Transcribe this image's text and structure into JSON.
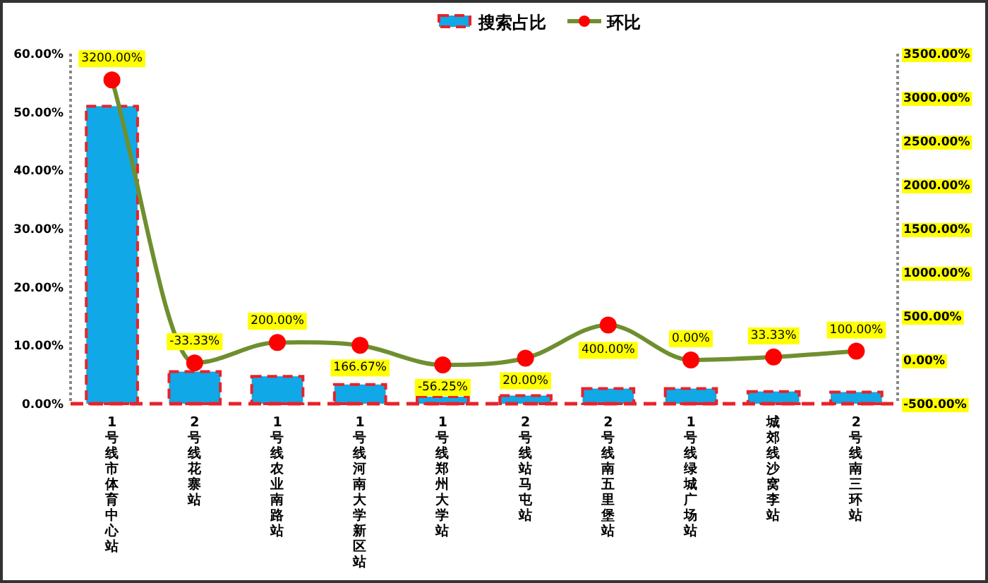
{
  "chart_data": {
    "type": "bar",
    "categories": [
      "1号线市体育中心站",
      "2号线花寨站",
      "1号线农业南路站",
      "1号线河南大学新区站",
      "1号线郑州大学站",
      "2号线站马屯站",
      "2号线南五里堡站",
      "1号线绿城广场站",
      "城郊线沙窝李站",
      "2号线南三环站"
    ],
    "series": [
      {
        "name": "搜索占比",
        "color": "#10a8e6",
        "values": [
          51,
          5.5,
          4.7,
          3.3,
          1.2,
          1.4,
          2.6,
          2.6,
          2.1,
          2.0
        ]
      },
      {
        "name": "环比",
        "type": "line",
        "axis": "y2",
        "color": "#6f8f2f",
        "marker": "circle",
        "values": [
          3200,
          -33.33,
          200,
          166.67,
          -56.25,
          20,
          400,
          0,
          33.33,
          100
        ],
        "value_labels": [
          "3200.00%",
          "-33.33%",
          "200.00%",
          "166.67%",
          "-56.25%",
          "20.00%",
          "400.00%",
          "0.00%",
          "33.33%",
          "100.00%"
        ]
      }
    ],
    "ylim": [
      0,
      60
    ],
    "yticks": [
      {
        "value": 0,
        "label": "0.00%"
      },
      {
        "value": 10,
        "label": "10.00%"
      },
      {
        "value": 20,
        "label": "20.00%"
      },
      {
        "value": 30,
        "label": "30.00%"
      },
      {
        "value": 40,
        "label": "40.00%"
      },
      {
        "value": 50,
        "label": "50.00%"
      },
      {
        "value": 60,
        "label": "60.00%"
      }
    ],
    "y2lim": [
      -500,
      3500
    ],
    "y2ticks": [
      {
        "value": -500,
        "label": "-500.00%"
      },
      {
        "value": 0,
        "label": "0.00%"
      },
      {
        "value": 500,
        "label": "500.00%"
      },
      {
        "value": 1000,
        "label": "1000.00%"
      },
      {
        "value": 1500,
        "label": "1500.00%"
      },
      {
        "value": 2000,
        "label": "2000.00%"
      },
      {
        "value": 2500,
        "label": "2500.00%"
      },
      {
        "value": 3000,
        "label": "3000.00%"
      },
      {
        "value": 3500,
        "label": "3500.00%"
      }
    ],
    "legend": "top",
    "grid": false
  }
}
